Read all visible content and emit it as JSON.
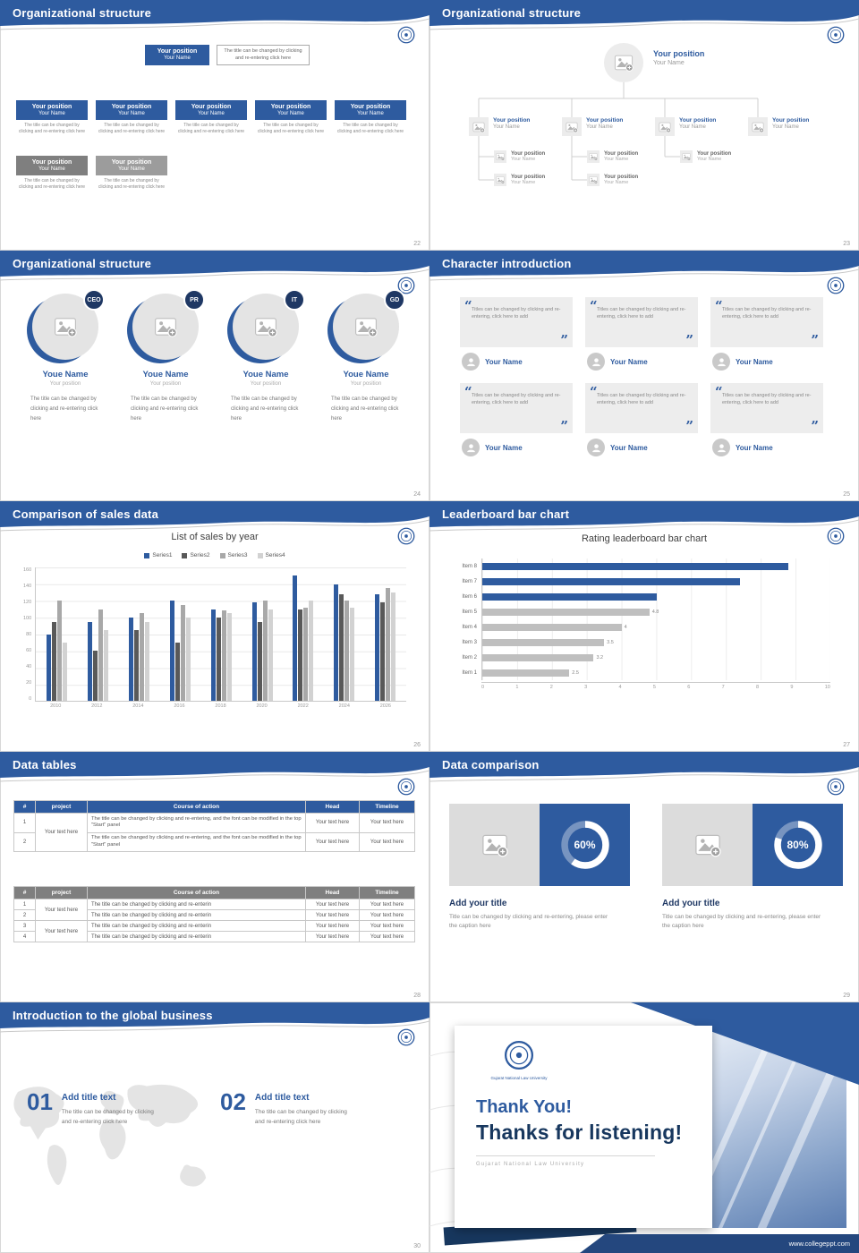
{
  "colors": {
    "accent": "#2e5b9f",
    "navy": "#1f3864",
    "gray_box": "#7f7f7f",
    "bar_gray": "#bfbfbf"
  },
  "common": {
    "position": "Your position",
    "name": "Your Name",
    "caption": "The title can be changed by clicking and re-entering click here"
  },
  "slide22": {
    "title": "Organizational structure",
    "page": "22"
  },
  "slide23": {
    "title": "Organizational structure",
    "page": "23"
  },
  "slide24": {
    "title": "Organizational structure",
    "page": "24",
    "member_name": "Youe Name",
    "badges": [
      "CEO",
      "PR",
      "IT",
      "GD"
    ]
  },
  "slide25": {
    "title": "Character introduction",
    "page": "25",
    "quote": "Titles can be changed by clicking and re-entering, click here to add"
  },
  "slide26": {
    "title": "Comparison of sales data",
    "page": "26"
  },
  "slide27": {
    "title": "Leaderboard bar chart",
    "page": "27"
  },
  "slide28": {
    "title": "Data tables",
    "page": "28",
    "table1": {
      "headers": [
        "#",
        "project",
        "Course of action",
        "Head",
        "Timeline"
      ],
      "row_nums": [
        "1",
        "2"
      ],
      "project_text": "Your text here",
      "action_text": "The title can be changed by clicking and re-entering, and the font can be modified in the top \"Start\" panel",
      "cell_text": "Your text here"
    },
    "table2": {
      "headers": [
        "#",
        "project",
        "Course of action",
        "Head",
        "Timeline"
      ],
      "row_nums": [
        "1",
        "2",
        "3",
        "4"
      ],
      "project_text": "Your text here",
      "action_text": "The title can be changed by clicking and re-enterin",
      "cell_text": "Your text here"
    }
  },
  "slide29": {
    "title": "Data comparison",
    "page": "29",
    "panels": [
      {
        "percent": "60%",
        "value": 60,
        "title": "Add your title",
        "caption": "Title can be changed by clicking and re-entering, please enter the caption here"
      },
      {
        "percent": "80%",
        "value": 80,
        "title": "Add your title",
        "caption": "Title can be changed by clicking and re-entering, please enter the caption here"
      }
    ]
  },
  "slide30": {
    "title": "Introduction to the global business",
    "page": "30",
    "items": [
      {
        "num": "01",
        "title": "Add title text",
        "caption": "The title can be changed by clicking and re-entering click here"
      },
      {
        "num": "02",
        "title": "Add title text",
        "caption": "The title can be changed by clicking and re-entering click here"
      }
    ]
  },
  "thankyou": {
    "line1": "Thank You!",
    "line2": "Thanks for listening!",
    "subtitle": "Gujarat National Law University",
    "website": "www.collegeppt.com"
  },
  "chart_data": [
    {
      "type": "bar",
      "title": "List of sales by year",
      "xlabel": "",
      "ylabel": "",
      "categories": [
        "2010",
        "2012",
        "2014",
        "2016",
        "2018",
        "2020",
        "2022",
        "2024",
        "2026"
      ],
      "series": [
        {
          "name": "Series1",
          "values": [
            80,
            95,
            100,
            120,
            110,
            118,
            150,
            140,
            128
          ]
        },
        {
          "name": "Series2",
          "values": [
            95,
            60,
            85,
            70,
            100,
            95,
            110,
            128,
            118
          ]
        },
        {
          "name": "Series3",
          "values": [
            120,
            110,
            105,
            115,
            108,
            120,
            112,
            120,
            135
          ]
        },
        {
          "name": "Series4",
          "values": [
            70,
            85,
            95,
            100,
            105,
            110,
            120,
            112,
            130
          ]
        }
      ],
      "colors": [
        "#2e5b9f",
        "#595959",
        "#a8a8a8",
        "#d2d2d2"
      ],
      "ylim": [
        0,
        160
      ],
      "ystep": 20,
      "grid": true,
      "legend_position": "top"
    },
    {
      "type": "bar",
      "orientation": "horizontal",
      "title": "Rating leaderboard bar chart",
      "items": [
        {
          "label": "Item 1",
          "value": 2.5,
          "color": "#bfbfbf",
          "show_value": true
        },
        {
          "label": "Item 2",
          "value": 3.2,
          "color": "#bfbfbf",
          "show_value": true
        },
        {
          "label": "Item 3",
          "value": 3.5,
          "color": "#bfbfbf",
          "show_value": true
        },
        {
          "label": "Item 4",
          "value": 4,
          "color": "#bfbfbf",
          "show_value": true
        },
        {
          "label": "Item 5",
          "value": 4.8,
          "color": "#bfbfbf",
          "show_value": true
        },
        {
          "label": "Item 6",
          "value": 5,
          "color": "#2e5b9f",
          "show_value": false
        },
        {
          "label": "Item 7",
          "value": 7.4,
          "color": "#2e5b9f",
          "show_value": false
        },
        {
          "label": "Item 8",
          "value": 8.8,
          "color": "#2e5b9f",
          "show_value": false
        }
      ],
      "xlim": [
        0,
        10
      ],
      "xstep": 1,
      "grid": true
    }
  ]
}
